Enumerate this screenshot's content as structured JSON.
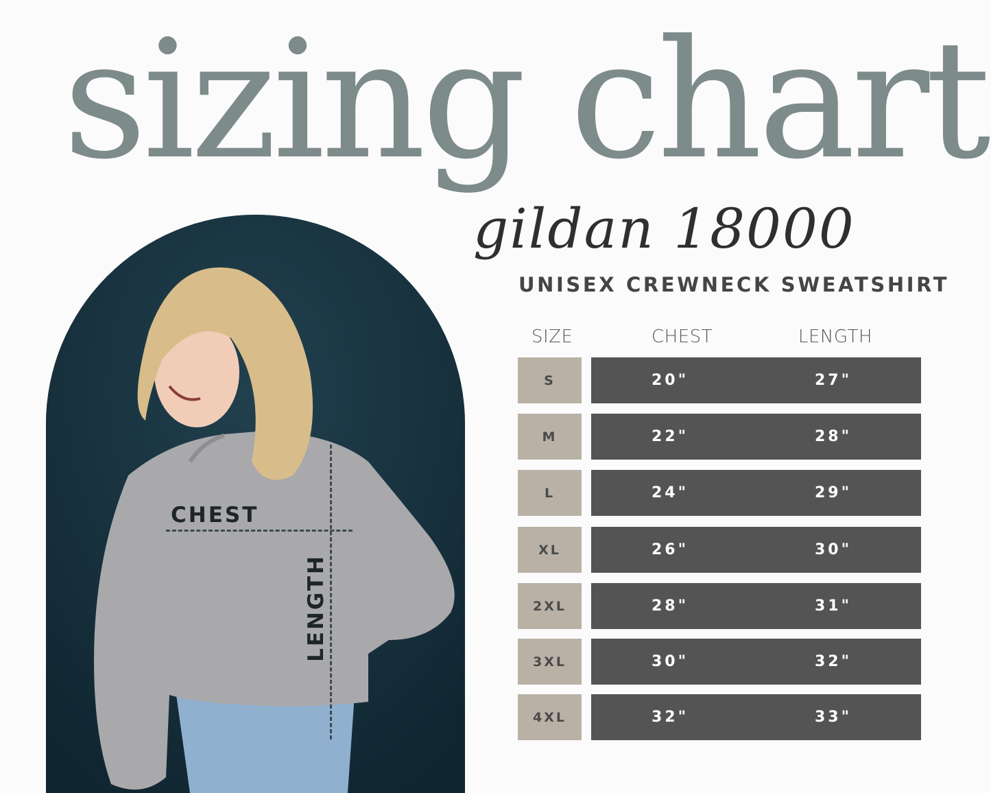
{
  "title": "sizing chart",
  "subtitle_script": "gildan 18000",
  "product": "UNISEX CREWNECK SWEATSHIRT",
  "photo": {
    "chest_label": "CHEST",
    "length_label": "LENGTH"
  },
  "colors": {
    "title": "#7d8b8a",
    "size_cell": "#bab1a6",
    "value_bar": "#545454",
    "arch_bg": "#1c3744"
  },
  "table": {
    "headers": [
      "SIZE",
      "CHEST",
      "LENGTH"
    ],
    "rows": [
      {
        "size": "S",
        "chest": "20\"",
        "length": "27\""
      },
      {
        "size": "M",
        "chest": "22\"",
        "length": "28\""
      },
      {
        "size": "L",
        "chest": "24\"",
        "length": "29\""
      },
      {
        "size": "XL",
        "chest": "26\"",
        "length": "30\""
      },
      {
        "size": "2XL",
        "chest": "28\"",
        "length": "31\""
      },
      {
        "size": "3XL",
        "chest": "30\"",
        "length": "32\""
      },
      {
        "size": "4XL",
        "chest": "32\"",
        "length": "33\""
      }
    ]
  }
}
